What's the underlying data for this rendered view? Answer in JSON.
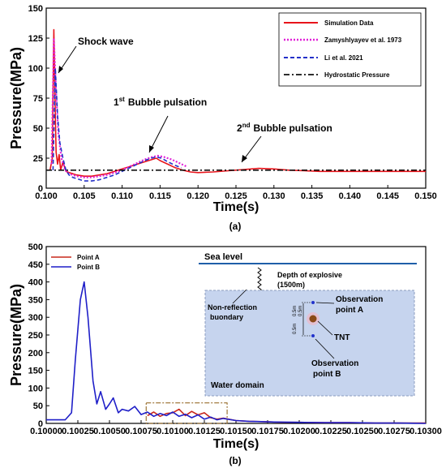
{
  "chart_data": [
    {
      "type": "line",
      "panel_label": "(a)",
      "xlabel": "Time(s)",
      "ylabel": "Pressure(MPa)",
      "xlim": [
        0.1,
        0.15
      ],
      "ylim": [
        0,
        150
      ],
      "xticks": [
        "0.100",
        "0.105",
        "0.110",
        "0.115",
        "0.120",
        "0.125",
        "0.130",
        "0.135",
        "0.140",
        "0.145",
        "0.150"
      ],
      "yticks": [
        "0",
        "25",
        "50",
        "75",
        "100",
        "125",
        "150"
      ],
      "legend_position": "top-right",
      "annotations": [
        {
          "text": "Shock wave"
        },
        {
          "text": "Bubble pulsation",
          "prefix": "1",
          "sup": "st"
        },
        {
          "text": "Bubble pulsation",
          "prefix": "2",
          "sup": "nd"
        }
      ],
      "series": [
        {
          "name": "Simulation Data",
          "color": "#e8141b",
          "style": "solid",
          "x": [
            0.1005,
            0.1008,
            0.101,
            0.1012,
            0.1013,
            0.1015,
            0.1017,
            0.1019,
            0.1022,
            0.1026,
            0.103,
            0.1035,
            0.104,
            0.105,
            0.106,
            0.107,
            0.108,
            0.109,
            0.11,
            0.111,
            0.112,
            0.113,
            0.114,
            0.1145,
            0.115,
            0.116,
            0.117,
            0.118,
            0.119,
            0.12,
            0.122,
            0.124,
            0.126,
            0.128,
            0.13,
            0.132,
            0.134,
            0.136,
            0.138,
            0.14,
            0.145,
            0.15
          ],
          "y": [
            15,
            25,
            132,
            60,
            30,
            20,
            28,
            15,
            22,
            14,
            13,
            12,
            11,
            10,
            10,
            11,
            12,
            14,
            16,
            18,
            20,
            22,
            24,
            25,
            23,
            20,
            17,
            15,
            13.5,
            13,
            13.5,
            14.5,
            15.5,
            16.5,
            16,
            15,
            14.5,
            14,
            14,
            14,
            14,
            14
          ]
        },
        {
          "name": "Zamyshlyayev et al. 1973",
          "color": "#e020d8",
          "style": "dotted",
          "x": [
            0.1007,
            0.101,
            0.1013,
            0.1016,
            0.102,
            0.1025,
            0.103,
            0.104,
            0.105,
            0.106,
            0.107,
            0.108,
            0.109,
            0.11,
            0.111,
            0.112,
            0.113,
            0.114,
            0.1147,
            0.1155,
            0.1165,
            0.1175,
            0.1185
          ],
          "y": [
            20,
            125,
            80,
            45,
            25,
            15,
            12,
            10,
            9,
            9,
            10,
            11,
            13,
            15,
            18,
            21,
            24,
            26,
            27,
            26,
            24,
            21,
            18
          ]
        },
        {
          "name": "Li  et al. 2021",
          "color": "#2430c8",
          "style": "dashed",
          "x": [
            0.1009,
            0.1012,
            0.1015,
            0.1018,
            0.1022,
            0.1026,
            0.103,
            0.1035,
            0.104,
            0.105,
            0.106,
            0.107,
            0.108,
            0.109,
            0.11,
            0.111,
            0.112,
            0.113,
            0.1138,
            0.1145,
            0.1152,
            0.116,
            0.117,
            0.1178
          ],
          "y": [
            15,
            100,
            60,
            38,
            25,
            15,
            11,
            9,
            8,
            6,
            6,
            7,
            9,
            11,
            14,
            17,
            20,
            23,
            25,
            26,
            25,
            22,
            19,
            17
          ]
        },
        {
          "name": "Hydrostatic Pressure",
          "color": "#111111",
          "style": "dashdot",
          "x": [
            0.1,
            0.15
          ],
          "y": [
            15,
            15
          ]
        }
      ]
    },
    {
      "type": "line",
      "panel_label": "(b)",
      "xlabel": "Time(s)",
      "ylabel": "Pressure(MPa)",
      "xlim": [
        0.1,
        0.103
      ],
      "ylim": [
        0,
        500
      ],
      "xticks": [
        "0.10000",
        "0.10025",
        "0.10050",
        "0.10075",
        "0.10100",
        "0.10125",
        "0.10150",
        "0.10175",
        "0.10200",
        "0.10225",
        "0.10250",
        "0.10275",
        "0.10300"
      ],
      "yticks": [
        "0",
        "50",
        "100",
        "150",
        "200",
        "250",
        "300",
        "350",
        "400",
        "450",
        "500"
      ],
      "legend_position": "top-left",
      "series": [
        {
          "name": "Point A",
          "color": "#c8281c",
          "x": [
            0.1008,
            0.10085,
            0.1009,
            0.10095,
            0.101,
            0.10105,
            0.1011,
            0.10115,
            0.1012,
            0.10125,
            0.1013,
            0.10135,
            0.1014,
            0.1015,
            0.1016,
            0.1017,
            0.1018,
            0.1019,
            0.102,
            0.1022,
            0.1024,
            0.1026,
            0.1028,
            0.103
          ],
          "y": [
            22,
            32,
            20,
            28,
            30,
            40,
            22,
            34,
            24,
            30,
            16,
            12,
            15,
            8,
            6,
            5,
            4,
            3,
            3,
            2,
            2,
            1,
            1,
            1
          ]
        },
        {
          "name": "Point B",
          "color": "#1f1fc8",
          "x": [
            0.1,
            0.10015,
            0.1002,
            0.10023,
            0.10027,
            0.1003,
            0.10033,
            0.10037,
            0.1004,
            0.10043,
            0.10047,
            0.1005,
            0.10053,
            0.10057,
            0.1006,
            0.10065,
            0.1007,
            0.10075,
            0.1008,
            0.10085,
            0.1009,
            0.10095,
            0.101,
            0.10105,
            0.1011,
            0.10115,
            0.1012,
            0.10125,
            0.1013,
            0.10135,
            0.1014,
            0.1015,
            0.1016,
            0.1017,
            0.1018,
            0.102,
            0.1022,
            0.1024,
            0.1026,
            0.1028,
            0.103
          ],
          "y": [
            10,
            10,
            30,
            180,
            350,
            400,
            300,
            120,
            55,
            90,
            40,
            55,
            72,
            30,
            40,
            35,
            48,
            25,
            32,
            20,
            28,
            22,
            32,
            20,
            26,
            16,
            24,
            12,
            18,
            10,
            14,
            8,
            6,
            5,
            4,
            3,
            2,
            2,
            1,
            1,
            0
          ]
        }
      ],
      "highlight_box": {
        "x": [
          0.10079,
          0.10143
        ],
        "y": [
          0,
          58
        ]
      },
      "inset": {
        "sea_level": "Sea level",
        "depth": "Depth of explosive",
        "depth_value": "(1500m)",
        "boundary": "Non-reflection",
        "boundary2": "buondary",
        "obs_a": "Observation",
        "obs_a2": "point A",
        "obs_b": "Observation",
        "obs_b2": "point B",
        "tnt": "TNT",
        "dist_a": "0.5m",
        "dist_a2": "0.5m",
        "dist_b": "0.5m",
        "water": "Water domain"
      }
    }
  ]
}
